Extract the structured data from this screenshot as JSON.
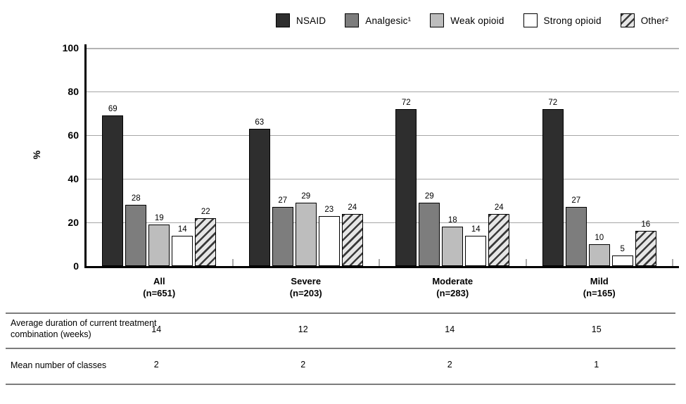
{
  "colors": {
    "nsaid": "#2e2e2e",
    "analgesic": "#7d7d7d",
    "weak_opioid": "#bdbdbd",
    "strong_opioid": "#ffffff",
    "other_hatch_stripe": "#3a3a3a",
    "other_hatch_bg": "#e6e6e6",
    "gridline": "#a6a6a6",
    "axis": "#000000",
    "table_line": "#7c7c7c"
  },
  "legend": {
    "items": [
      {
        "key": "nsaid",
        "label": "NSAID"
      },
      {
        "key": "analgesic",
        "label": "Analgesic¹"
      },
      {
        "key": "weak_opioid",
        "label": "Weak opioid"
      },
      {
        "key": "strong_opioid",
        "label": "Strong opioid"
      },
      {
        "key": "other",
        "label": "Other²"
      }
    ]
  },
  "chart_data": {
    "type": "bar",
    "title": "",
    "xlabel": "",
    "ylabel": "%",
    "ylim": [
      0,
      100
    ],
    "yticks": [
      0,
      20,
      40,
      60,
      80,
      100
    ],
    "grid": true,
    "legend_position": "top",
    "categories": [
      {
        "label": "All",
        "n_label": "(n=651)"
      },
      {
        "label": "Severe",
        "n_label": "(n=203)"
      },
      {
        "label": "Moderate",
        "n_label": "(n=283)"
      },
      {
        "label": "Mild",
        "n_label": "(n=165)"
      }
    ],
    "series": [
      {
        "name": "NSAID",
        "key": "nsaid",
        "values": [
          69,
          63,
          72,
          72
        ]
      },
      {
        "name": "Analgesic¹",
        "key": "analgesic",
        "values": [
          28,
          27,
          29,
          27
        ]
      },
      {
        "name": "Weak opioid",
        "key": "weak_opioid",
        "values": [
          19,
          29,
          18,
          10
        ]
      },
      {
        "name": "Strong opioid",
        "key": "strong_opioid",
        "values": [
          14,
          23,
          14,
          5
        ]
      },
      {
        "name": "Other²",
        "key": "other",
        "values": [
          22,
          24,
          24,
          16
        ]
      }
    ]
  },
  "table": {
    "rows": [
      {
        "label": "Average duration of current treatment combination (weeks)",
        "values": [
          "14",
          "12",
          "14",
          "15"
        ]
      },
      {
        "label": "Mean number of classes",
        "values": [
          "2",
          "2",
          "2",
          "1"
        ]
      }
    ]
  }
}
